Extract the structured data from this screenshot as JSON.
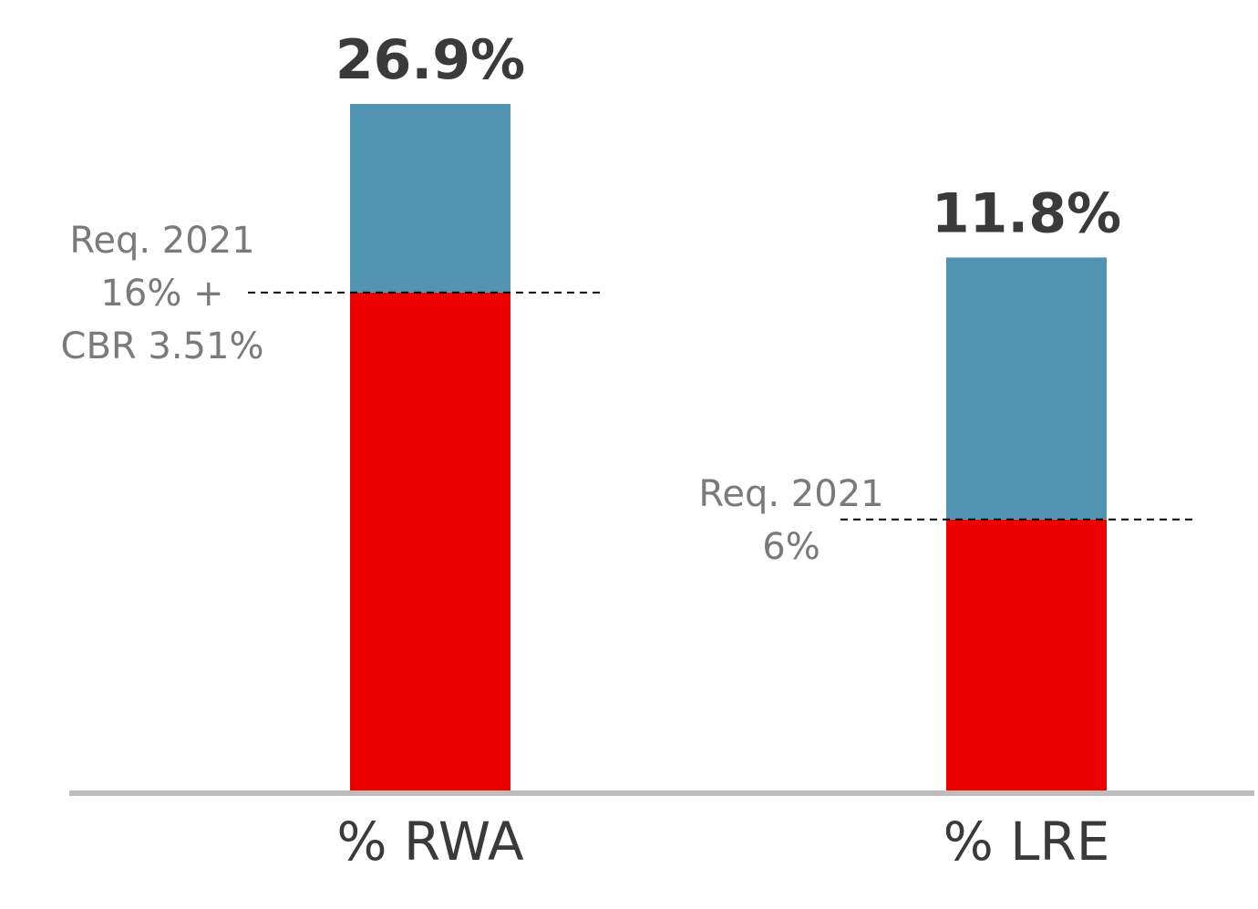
{
  "chart_data": {
    "type": "bar",
    "stacked": true,
    "categories": [
      "% RWA",
      "% LRE"
    ],
    "series": [
      {
        "values": [
          19.51,
          6.0
        ],
        "color": "#ec0000"
      },
      {
        "values": [
          7.39,
          5.8
        ],
        "color": "#5193b0"
      }
    ],
    "totals": [
      26.9,
      11.8
    ],
    "total_labels": [
      "26.9%",
      "11.8%"
    ],
    "requirements": [
      {
        "value": 19.51,
        "lines": [
          "Req. 2021",
          "16% +",
          "CBR 3.51%"
        ]
      },
      {
        "value": 6.0,
        "lines": [
          "Req. 2021",
          "6%"
        ]
      }
    ],
    "bar_scales": [
      {
        "ylim": [
          0,
          26.9
        ]
      },
      {
        "ylim": [
          0,
          15.2
        ]
      }
    ],
    "colors": {
      "axis": "#bdbdbd",
      "requirement_line": "#000000"
    },
    "title": "",
    "xlabel": "",
    "ylabel": "",
    "grid": false,
    "legend": "none"
  }
}
